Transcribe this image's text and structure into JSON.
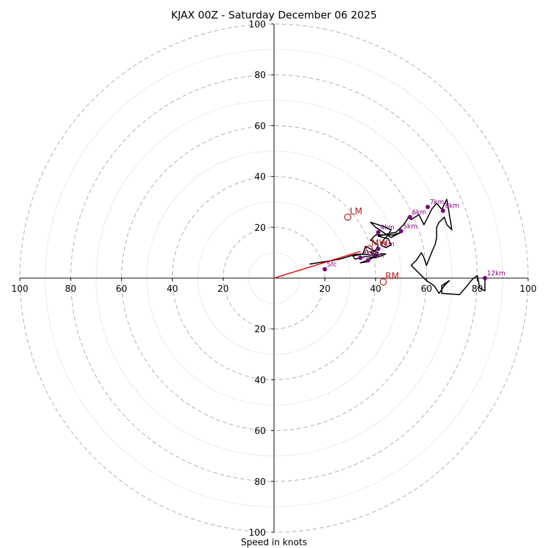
{
  "chart_data": {
    "type": "hodograph",
    "title": "KJAX 00Z - Saturday December 06 2025",
    "xlabel": "Speed in knots",
    "xlim": [
      -100,
      100
    ],
    "ylim": [
      -100,
      100
    ],
    "ring_major": [
      20,
      40,
      60,
      80,
      100
    ],
    "ring_minor": [
      10,
      30,
      50,
      70,
      90
    ],
    "tick_labels": [
      {
        "v": -100,
        "text": "100"
      },
      {
        "v": -80,
        "text": "80"
      },
      {
        "v": -60,
        "text": "60"
      },
      {
        "v": -40,
        "text": "40"
      },
      {
        "v": -20,
        "text": "20"
      },
      {
        "v": 20,
        "text": "20"
      },
      {
        "v": 40,
        "text": "40"
      },
      {
        "v": 60,
        "text": "60"
      },
      {
        "v": 80,
        "text": "80"
      },
      {
        "v": 100,
        "text": "100"
      }
    ],
    "trace_color": "#000000",
    "trace": [
      [
        14,
        5.5
      ],
      [
        20,
        6.5
      ],
      [
        22,
        6.8
      ],
      [
        26,
        7.5
      ],
      [
        32,
        9.3
      ],
      [
        35,
        9.5
      ],
      [
        38,
        9
      ],
      [
        40,
        9
      ],
      [
        41,
        10
      ],
      [
        39,
        11
      ],
      [
        36,
        12.5
      ],
      [
        35,
        9.5
      ],
      [
        31,
        8.7
      ],
      [
        32,
        7.5
      ],
      [
        36,
        8.5
      ],
      [
        40,
        8
      ],
      [
        44,
        9.5
      ],
      [
        42,
        9.6
      ],
      [
        37,
        7
      ],
      [
        34,
        6
      ],
      [
        37,
        6.5
      ],
      [
        38,
        8
      ],
      [
        41,
        9
      ],
      [
        38,
        10
      ],
      [
        40,
        11
      ],
      [
        41,
        13
      ],
      [
        38,
        15
      ],
      [
        40,
        17
      ],
      [
        43,
        17
      ],
      [
        47,
        17
      ],
      [
        50,
        18
      ],
      [
        46,
        16
      ],
      [
        43,
        18
      ],
      [
        40,
        20
      ],
      [
        38,
        22
      ],
      [
        41,
        21
      ],
      [
        44,
        20
      ],
      [
        46,
        19
      ],
      [
        45,
        17
      ],
      [
        43,
        15
      ],
      [
        42,
        13
      ],
      [
        44,
        12
      ],
      [
        46,
        13
      ],
      [
        45,
        15.5
      ],
      [
        43,
        16
      ],
      [
        41,
        16.5
      ],
      [
        45,
        17.5
      ],
      [
        48,
        18
      ],
      [
        51,
        21
      ],
      [
        53,
        24
      ],
      [
        54,
        23
      ],
      [
        57,
        25
      ],
      [
        59,
        21
      ],
      [
        60,
        23
      ],
      [
        62,
        27
      ],
      [
        64,
        29.5
      ],
      [
        66,
        27
      ],
      [
        67,
        29
      ],
      [
        68,
        31
      ],
      [
        70,
        19
      ],
      [
        68,
        21
      ],
      [
        67,
        24
      ],
      [
        65,
        22
      ],
      [
        64,
        20
      ],
      [
        64,
        16
      ],
      [
        63.5,
        13.5
      ],
      [
        62,
        10
      ],
      [
        60,
        5
      ],
      [
        59,
        8
      ],
      [
        58,
        10
      ],
      [
        56,
        7
      ],
      [
        54,
        5
      ],
      [
        56,
        3
      ],
      [
        58,
        1
      ],
      [
        60,
        -1
      ],
      [
        63,
        -3
      ],
      [
        65,
        -6
      ],
      [
        67,
        -3
      ],
      [
        69,
        -1
      ],
      [
        66,
        -3
      ],
      [
        66,
        -6
      ],
      [
        73,
        -6.5
      ],
      [
        76,
        -3
      ],
      [
        78,
        -0.5
      ],
      [
        80,
        1
      ],
      [
        81,
        -4
      ],
      [
        83,
        -5
      ],
      [
        83,
        0
      ]
    ],
    "markers": [
      {
        "label": "Sfc",
        "u": 20,
        "v": 3.5
      },
      {
        "label": "1km",
        "u": 37,
        "v": 7
      },
      {
        "label": "2km",
        "u": 41,
        "v": 11.5
      },
      {
        "label": "3km",
        "u": 34,
        "v": 8
      },
      {
        "label": "4km",
        "u": 41,
        "v": 18
      },
      {
        "label": "5km",
        "u": 50,
        "v": 18.5
      },
      {
        "label": "6km",
        "u": 53.5,
        "v": 24
      },
      {
        "label": "7km",
        "u": 60.5,
        "v": 28
      },
      {
        "label": "8km",
        "u": 66.5,
        "v": 26.5
      },
      {
        "label": "12km",
        "u": 83,
        "v": 0
      }
    ],
    "storm_motion": [
      {
        "label": "LM",
        "u": 29,
        "v": 24
      },
      {
        "label": "MW",
        "u": 37.5,
        "v": 11.5
      },
      {
        "label": "RM",
        "u": 43,
        "v": -1.5
      }
    ],
    "shear_vector": {
      "from": [
        0,
        0
      ],
      "to": [
        34,
        10.5
      ],
      "color": "#e01010"
    },
    "marker_color": "#800080",
    "motion_color": "#b22222"
  }
}
